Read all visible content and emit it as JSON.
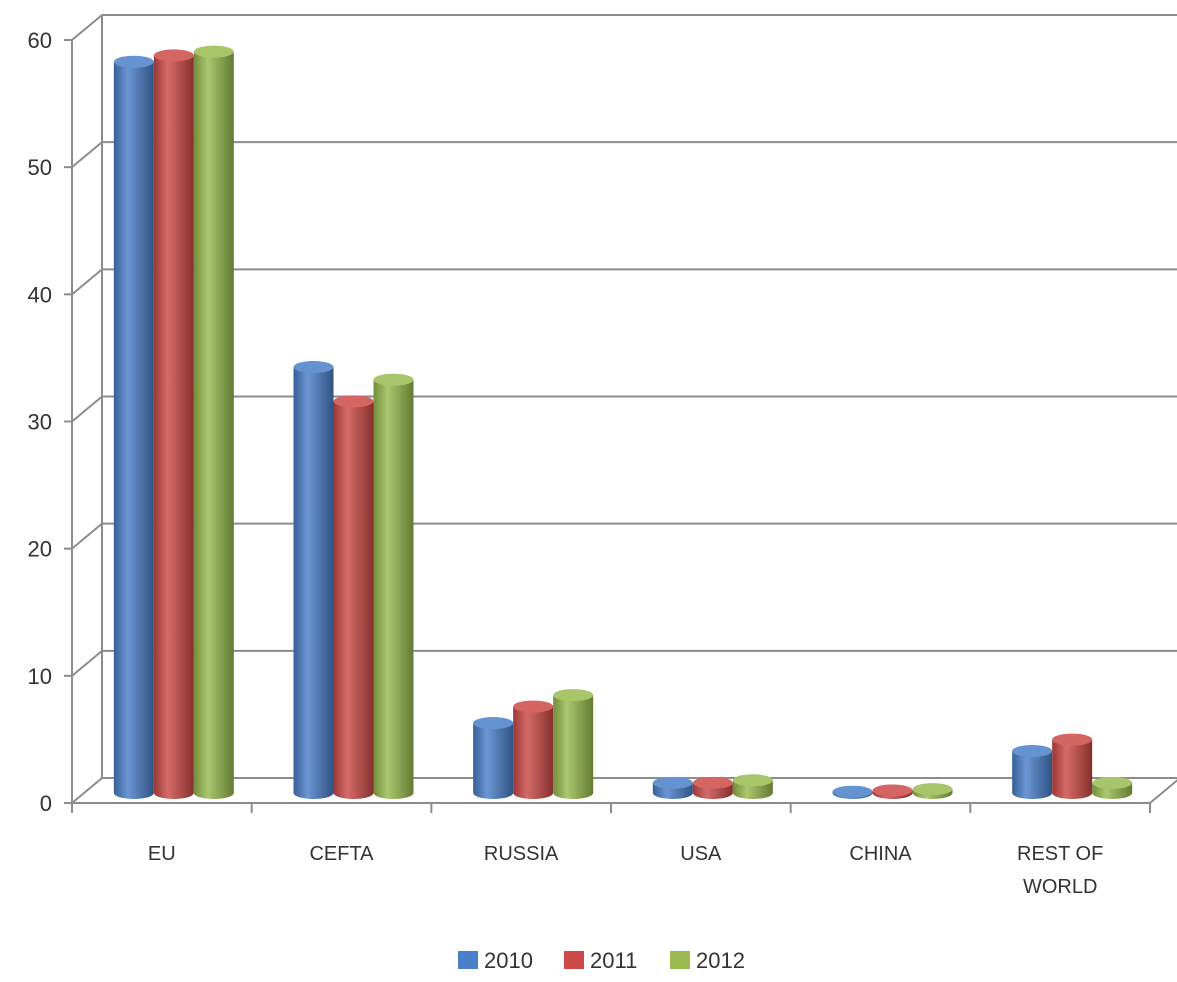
{
  "chart_data": {
    "type": "bar",
    "style": "3d-cylinder",
    "categories": [
      [
        "EU"
      ],
      [
        "CEFTA"
      ],
      [
        "RUSSIA"
      ],
      [
        "USA"
      ],
      [
        "CHINA"
      ],
      [
        "REST OF",
        "WORLD"
      ]
    ],
    "series": [
      {
        "name": "2010",
        "color": "#4a7fc9",
        "values": [
          57.5,
          33.5,
          5.5,
          0.8,
          0.1,
          3.3
        ]
      },
      {
        "name": "2011",
        "color": "#cc4a47",
        "values": [
          58.0,
          30.8,
          6.8,
          0.8,
          0.2,
          4.2
        ]
      },
      {
        "name": "2012",
        "color": "#99bb4f",
        "values": [
          58.3,
          32.5,
          7.7,
          1.0,
          0.3,
          0.8
        ]
      }
    ],
    "ylim": [
      0,
      60
    ],
    "yticks": [
      "0",
      "10",
      "20",
      "30",
      "40",
      "50",
      "60"
    ],
    "grid": true,
    "legend": "bottom"
  }
}
